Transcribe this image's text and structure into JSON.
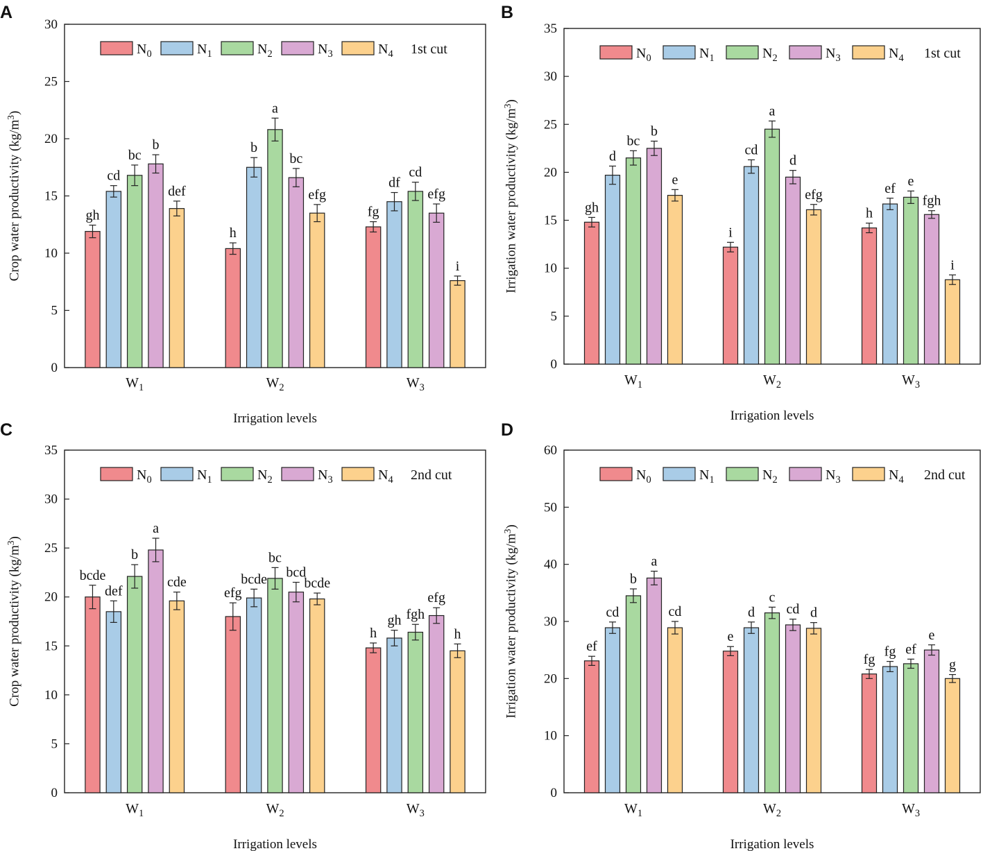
{
  "colors": {
    "N0": "#f08a8d",
    "N1": "#a9cce7",
    "N2": "#a9d9a0",
    "N3": "#d9a9d3",
    "N4": "#fcd18d"
  },
  "chart_data": [
    {
      "type": "bar",
      "panel": "A",
      "title": "1st cut",
      "xlabel": "Irrigation levels",
      "ylabel": "Crop water productivity (kg/m3)",
      "ylim": [
        0,
        30
      ],
      "yticks": [
        0,
        5,
        10,
        15,
        20,
        25,
        30
      ],
      "categories": [
        "W1",
        "W2",
        "W3"
      ],
      "series": [
        {
          "name": "N0",
          "values": [
            11.9,
            10.4,
            12.3
          ],
          "errors": [
            0.55,
            0.5,
            0.45
          ],
          "labels": [
            "gh",
            "h",
            "fg"
          ]
        },
        {
          "name": "N1",
          "values": [
            15.4,
            17.5,
            14.5
          ],
          "errors": [
            0.5,
            0.85,
            0.8
          ],
          "labels": [
            "cd",
            "b",
            "df"
          ]
        },
        {
          "name": "N2",
          "values": [
            16.8,
            20.8,
            15.4
          ],
          "errors": [
            0.9,
            1.0,
            0.8
          ],
          "labels": [
            "bc",
            "a",
            "cd"
          ]
        },
        {
          "name": "N3",
          "values": [
            17.8,
            16.6,
            13.5
          ],
          "errors": [
            0.8,
            0.8,
            0.8
          ],
          "labels": [
            "b",
            "bc",
            "efg"
          ]
        },
        {
          "name": "N4",
          "values": [
            13.9,
            13.5,
            7.6
          ],
          "errors": [
            0.65,
            0.75,
            0.4
          ],
          "labels": [
            "def",
            "efg",
            "i"
          ]
        }
      ]
    },
    {
      "type": "bar",
      "panel": "B",
      "title": "1st cut",
      "xlabel": "Irrigation levels",
      "ylabel": "Irrigation water productivity (kg/m3)",
      "ylim": [
        0,
        35
      ],
      "yticks": [
        0,
        5,
        10,
        15,
        20,
        25,
        30,
        35
      ],
      "categories": [
        "W1",
        "W2",
        "W3"
      ],
      "series": [
        {
          "name": "N0",
          "values": [
            14.8,
            12.2,
            14.2
          ],
          "errors": [
            0.5,
            0.5,
            0.5
          ],
          "labels": [
            "gh",
            "i",
            "h"
          ]
        },
        {
          "name": "N1",
          "values": [
            19.7,
            20.6,
            16.7
          ],
          "errors": [
            0.95,
            0.7,
            0.6
          ],
          "labels": [
            "d",
            "cd",
            "ef"
          ]
        },
        {
          "name": "N2",
          "values": [
            21.5,
            24.5,
            17.4
          ],
          "errors": [
            0.75,
            0.85,
            0.65
          ],
          "labels": [
            "bc",
            "a",
            "e"
          ]
        },
        {
          "name": "N3",
          "values": [
            22.5,
            19.5,
            15.6
          ],
          "errors": [
            0.75,
            0.7,
            0.4
          ],
          "labels": [
            "b",
            "d",
            "fgh"
          ]
        },
        {
          "name": "N4",
          "values": [
            17.6,
            16.1,
            8.8
          ],
          "errors": [
            0.6,
            0.55,
            0.5
          ],
          "labels": [
            "e",
            "efg",
            "i"
          ]
        }
      ]
    },
    {
      "type": "bar",
      "panel": "C",
      "title": "2nd cut",
      "xlabel": "Irrigation levels",
      "ylabel": "Crop water productivity (kg/m3)",
      "ylim": [
        0,
        35
      ],
      "yticks": [
        0,
        5,
        10,
        15,
        20,
        25,
        30,
        35
      ],
      "categories": [
        "W1",
        "W2",
        "W3"
      ],
      "series": [
        {
          "name": "N0",
          "values": [
            20.0,
            18.0,
            14.8
          ],
          "errors": [
            1.2,
            1.4,
            0.5
          ],
          "labels": [
            "bcde",
            "efg",
            "h"
          ]
        },
        {
          "name": "N1",
          "values": [
            18.5,
            19.9,
            15.8
          ],
          "errors": [
            1.1,
            0.9,
            0.8
          ],
          "labels": [
            "def",
            "bcde",
            "gh"
          ]
        },
        {
          "name": "N2",
          "values": [
            22.1,
            21.9,
            16.4
          ],
          "errors": [
            1.2,
            1.1,
            0.8
          ],
          "labels": [
            "b",
            "bc",
            "fgh"
          ]
        },
        {
          "name": "N3",
          "values": [
            24.8,
            20.5,
            18.1
          ],
          "errors": [
            1.2,
            1.0,
            0.8
          ],
          "labels": [
            "a",
            "bcd",
            "efg"
          ]
        },
        {
          "name": "N4",
          "values": [
            19.6,
            19.8,
            14.5
          ],
          "errors": [
            0.9,
            0.6,
            0.7
          ],
          "labels": [
            "cde",
            "bcde",
            "h"
          ]
        }
      ]
    },
    {
      "type": "bar",
      "panel": "D",
      "title": "2nd cut",
      "xlabel": "Irrigation levels",
      "ylabel": "Irrigation water productivity (kg/m3)",
      "ylim": [
        0,
        60
      ],
      "yticks": [
        0,
        10,
        20,
        30,
        40,
        50,
        60
      ],
      "categories": [
        "W1",
        "W2",
        "W3"
      ],
      "series": [
        {
          "name": "N0",
          "values": [
            23.1,
            24.8,
            20.8
          ],
          "errors": [
            0.8,
            0.8,
            0.8
          ],
          "labels": [
            "ef",
            "e",
            "fg"
          ]
        },
        {
          "name": "N1",
          "values": [
            28.9,
            28.9,
            22.1
          ],
          "errors": [
            1.0,
            1.0,
            0.9
          ],
          "labels": [
            "cd",
            "d",
            "fg"
          ]
        },
        {
          "name": "N2",
          "values": [
            34.5,
            31.5,
            22.6
          ],
          "errors": [
            1.2,
            1.0,
            0.8
          ],
          "labels": [
            "b",
            "c",
            "ef"
          ]
        },
        {
          "name": "N3",
          "values": [
            37.6,
            29.4,
            25.0
          ],
          "errors": [
            1.2,
            1.0,
            0.9
          ],
          "labels": [
            "a",
            "cd",
            "e"
          ]
        },
        {
          "name": "N4",
          "values": [
            28.9,
            28.8,
            20.0
          ],
          "errors": [
            1.1,
            1.0,
            0.7
          ],
          "labels": [
            "cd",
            "d",
            "g"
          ]
        }
      ]
    }
  ]
}
